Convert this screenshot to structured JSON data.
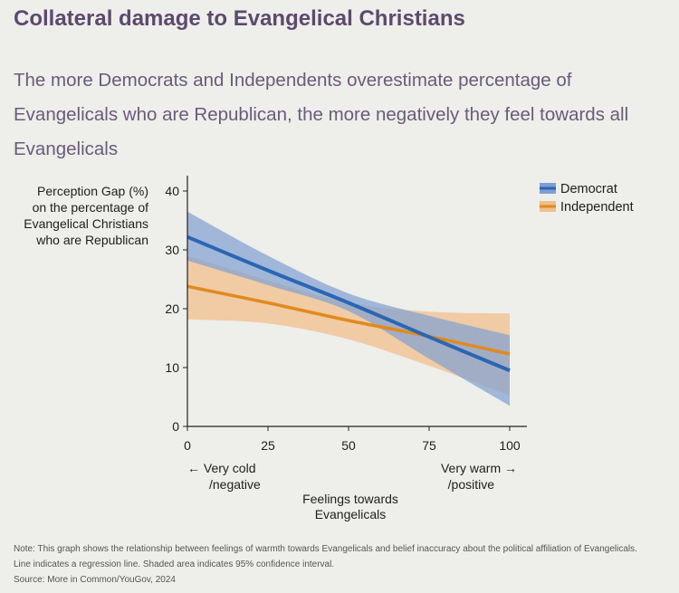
{
  "title": "Collateral damage to Evangelical Christians",
  "subtitle": "The more Democrats and Independents overestimate percentage of Evangelicals who are Republican, the more negatively they feel towards all Evangelicals",
  "footnotes": {
    "note": "Note: This graph shows the relationship between feelings of warmth towards Evangelicals and belief inaccuracy about the political affiliation of Evangelicals.",
    "line2": "Line indicates a regression line. Shaded area indicates 95% confidence interval.",
    "source": "Source: More in Common/YouGov, 2024"
  },
  "colors": {
    "democrat": "#2a66b3",
    "democrat_band": "#7f9fd2",
    "independent": "#e18a1e",
    "independent_band": "#f0bf8c",
    "axis": "#222222"
  },
  "chart_data": {
    "type": "line",
    "ylabel": [
      "Perception Gap (%)",
      "on the percentage of",
      "Evangelical Christians",
      "who are Republican"
    ],
    "xlabel": [
      "Feelings towards",
      "Evangelicals"
    ],
    "x_annotations": {
      "left": [
        "← Very cold",
        "/negative"
      ],
      "right": [
        "Very warm →",
        "/positive"
      ]
    },
    "xlim": [
      0,
      100
    ],
    "ylim": [
      0,
      40
    ],
    "xticks": [
      0,
      25,
      50,
      75,
      100
    ],
    "yticks": [
      0,
      10,
      20,
      30,
      40
    ],
    "grid": false,
    "legend": "top-right",
    "series": [
      {
        "name": "Democrat",
        "x": [
          0,
          25,
          50,
          75,
          100
        ],
        "y": [
          32.2,
          26.5,
          21.0,
          15.2,
          9.5
        ],
        "lower": [
          28.2,
          24.0,
          19.6,
          11.5,
          3.5
        ],
        "upper": [
          36.5,
          29.0,
          22.6,
          18.8,
          15.5
        ]
      },
      {
        "name": "Independent",
        "x": [
          0,
          25,
          50,
          75,
          100
        ],
        "y": [
          23.8,
          21.0,
          18.0,
          15.3,
          12.3
        ],
        "lower": [
          18.2,
          17.5,
          14.8,
          10.3,
          5.3
        ],
        "upper": [
          29.0,
          24.8,
          21.0,
          19.5,
          19.2
        ]
      }
    ]
  }
}
